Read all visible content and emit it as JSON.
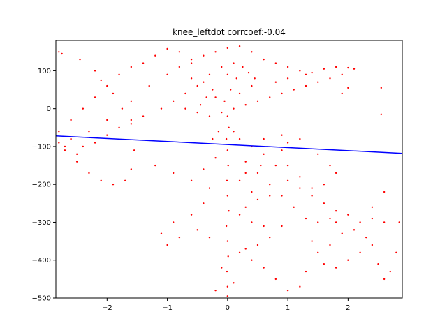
{
  "chart_data": {
    "type": "scatter",
    "title": "knee_leftdot corrcoef:-0.04",
    "xlabel": "",
    "ylabel": "",
    "xlim": [
      -2.85,
      2.9
    ],
    "ylim": [
      -500,
      180
    ],
    "xticks": [
      -2,
      -1,
      0,
      1,
      2
    ],
    "yticks": [
      100,
      0,
      -100,
      -200,
      -300,
      -400,
      -500
    ],
    "grid": false,
    "series": [
      {
        "type": "scatter",
        "color": "#ff0000",
        "points": [
          [
            -2.8,
            150
          ],
          [
            -2.75,
            145
          ],
          [
            -2.45,
            130
          ],
          [
            -2.2,
            100
          ],
          [
            -2.1,
            75
          ],
          [
            -1.9,
            40
          ],
          [
            -1.75,
            0
          ],
          [
            -1.6,
            -40
          ],
          [
            -1.55,
            -110
          ],
          [
            -1.6,
            -160
          ],
          [
            -1.7,
            -190
          ],
          [
            -1.9,
            -200
          ],
          [
            -2.1,
            -190
          ],
          [
            -2.3,
            -170
          ],
          [
            -2.5,
            -140
          ],
          [
            -2.7,
            -110
          ],
          [
            -2.8,
            -90
          ],
          [
            -2.6,
            -80
          ],
          [
            -2.3,
            -60
          ],
          [
            -2.0,
            -30
          ],
          [
            -1.6,
            20
          ],
          [
            -1.3,
            60
          ],
          [
            -1.0,
            90
          ],
          [
            -0.8,
            110
          ],
          [
            -0.6,
            120
          ],
          [
            -1.2,
            140
          ],
          [
            -1.0,
            158
          ],
          [
            -0.8,
            150
          ],
          [
            -0.6,
            130
          ],
          [
            -0.4,
            140
          ],
          [
            -0.2,
            150
          ],
          [
            0.0,
            160
          ],
          [
            0.2,
            165
          ],
          [
            0.4,
            150
          ],
          [
            0.6,
            130
          ],
          [
            0.8,
            120
          ],
          [
            1.0,
            110
          ],
          [
            1.2,
            100
          ],
          [
            1.4,
            95
          ],
          [
            1.6,
            105
          ],
          [
            1.8,
            110
          ],
          [
            2.0,
            108
          ],
          [
            2.1,
            105
          ],
          [
            1.9,
            90
          ],
          [
            1.7,
            80
          ],
          [
            1.5,
            70
          ],
          [
            1.3,
            60
          ],
          [
            1.1,
            50
          ],
          [
            0.9,
            40
          ],
          [
            0.7,
            30
          ],
          [
            0.5,
            20
          ],
          [
            0.3,
            10
          ],
          [
            0.1,
            0
          ],
          [
            -0.1,
            -10
          ],
          [
            -0.3,
            -20
          ],
          [
            -0.5,
            -10
          ],
          [
            -0.7,
            0
          ],
          [
            -0.2,
            30
          ],
          [
            0.2,
            40
          ],
          [
            0.4,
            60
          ],
          [
            0.0,
            90
          ],
          [
            -0.1,
            110
          ],
          [
            0.1,
            120
          ],
          [
            0.15,
            80
          ],
          [
            0.05,
            50
          ],
          [
            -0.05,
            20
          ],
          [
            0.0,
            -20
          ],
          [
            0.02,
            -50
          ],
          [
            -0.02,
            -80
          ],
          [
            0.0,
            -110
          ],
          [
            0.01,
            -150
          ],
          [
            -0.01,
            -190
          ],
          [
            0.0,
            -230
          ],
          [
            0.02,
            -270
          ],
          [
            -0.02,
            -310
          ],
          [
            0.0,
            -350
          ],
          [
            0.01,
            -390
          ],
          [
            -0.01,
            -430
          ],
          [
            0.0,
            -470
          ],
          [
            0.0,
            -495
          ],
          [
            -0.2,
            -480
          ],
          [
            0.1,
            -460
          ],
          [
            -0.1,
            -420
          ],
          [
            0.2,
            -380
          ],
          [
            -0.3,
            -340
          ],
          [
            -0.5,
            -320
          ],
          [
            -0.8,
            -340
          ],
          [
            -1.0,
            -360
          ],
          [
            -1.1,
            -330
          ],
          [
            -0.9,
            -300
          ],
          [
            -0.6,
            -280
          ],
          [
            -0.4,
            -250
          ],
          [
            -0.3,
            -210
          ],
          [
            -0.6,
            -190
          ],
          [
            -0.9,
            -170
          ],
          [
            -1.2,
            -150
          ],
          [
            -0.4,
            -160
          ],
          [
            -0.2,
            -130
          ],
          [
            0.3,
            -140
          ],
          [
            0.5,
            -170
          ],
          [
            0.7,
            -200
          ],
          [
            0.9,
            -230
          ],
          [
            1.1,
            -260
          ],
          [
            1.3,
            -290
          ],
          [
            1.5,
            -300
          ],
          [
            1.7,
            -290
          ],
          [
            1.8,
            -270
          ],
          [
            1.6,
            -250
          ],
          [
            1.4,
            -230
          ],
          [
            1.2,
            -210
          ],
          [
            1.0,
            -190
          ],
          [
            0.8,
            -150
          ],
          [
            0.6,
            -120
          ],
          [
            0.4,
            -100
          ],
          [
            0.6,
            -80
          ],
          [
            0.9,
            -70
          ],
          [
            1.2,
            -80
          ],
          [
            1.5,
            -120
          ],
          [
            1.7,
            -150
          ],
          [
            1.8,
            -170
          ],
          [
            1.6,
            -200
          ],
          [
            1.4,
            -210
          ],
          [
            1.2,
            -180
          ],
          [
            1.0,
            -150
          ],
          [
            0.9,
            -110
          ],
          [
            1.0,
            -90
          ],
          [
            1.8,
            -300
          ],
          [
            2.1,
            -320
          ],
          [
            2.3,
            -340
          ],
          [
            2.2,
            -380
          ],
          [
            2.0,
            -400
          ],
          [
            1.8,
            -420
          ],
          [
            1.6,
            -410
          ],
          [
            1.5,
            -380
          ],
          [
            1.4,
            -350
          ],
          [
            2.4,
            -360
          ],
          [
            2.5,
            -410
          ],
          [
            2.6,
            -450
          ],
          [
            2.7,
            -430
          ],
          [
            2.8,
            -380
          ],
          [
            2.85,
            -300
          ],
          [
            2.9,
            -265
          ],
          [
            2.6,
            -300
          ],
          [
            2.4,
            -290
          ],
          [
            2.2,
            -300
          ],
          [
            2.0,
            -280
          ],
          [
            1.9,
            -330
          ],
          [
            1.7,
            -360
          ],
          [
            1.3,
            -430
          ],
          [
            1.2,
            -470
          ],
          [
            1.0,
            -480
          ],
          [
            0.8,
            -450
          ],
          [
            0.6,
            -420
          ],
          [
            0.4,
            -400
          ],
          [
            0.3,
            -370
          ],
          [
            0.5,
            -360
          ],
          [
            0.7,
            -340
          ],
          [
            0.9,
            -310
          ],
          [
            0.6,
            -310
          ],
          [
            0.4,
            -300
          ],
          [
            0.2,
            -280
          ],
          [
            0.3,
            -260
          ],
          [
            0.5,
            -240
          ],
          [
            0.7,
            -230
          ],
          [
            0.4,
            -220
          ],
          [
            0.2,
            -190
          ],
          [
            0.3,
            -170
          ],
          [
            0.55,
            -150
          ],
          [
            2.55,
            55
          ],
          [
            2.55,
            -15
          ],
          [
            2.6,
            -220
          ],
          [
            2.4,
            -260
          ],
          [
            1.9,
            40
          ],
          [
            2.0,
            55
          ],
          [
            -0.5,
            60
          ],
          [
            -0.7,
            40
          ],
          [
            -0.9,
            20
          ],
          [
            -1.1,
            0
          ],
          [
            -1.4,
            -20
          ],
          [
            -1.6,
            -30
          ],
          [
            -1.8,
            -50
          ],
          [
            -2.0,
            -70
          ],
          [
            -2.2,
            -90
          ],
          [
            -2.4,
            -100
          ],
          [
            -2.5,
            -120
          ],
          [
            -2.7,
            -100
          ],
          [
            -2.8,
            -60
          ],
          [
            -2.6,
            -30
          ],
          [
            -2.4,
            0
          ],
          [
            -2.2,
            30
          ],
          [
            -2.0,
            60
          ],
          [
            -1.8,
            90
          ],
          [
            -1.6,
            110
          ],
          [
            -1.4,
            120
          ],
          [
            -0.3,
            90
          ],
          [
            -0.4,
            70
          ],
          [
            -0.6,
            80
          ],
          [
            0.8,
            70
          ],
          [
            1.0,
            80
          ],
          [
            1.3,
            90
          ],
          [
            0.25,
            110
          ],
          [
            0.35,
            95
          ],
          [
            0.45,
            80
          ],
          [
            -0.25,
            50
          ],
          [
            -0.35,
            30
          ],
          [
            -0.45,
            10
          ],
          [
            0.1,
            -60
          ],
          [
            0.2,
            -80
          ],
          [
            -0.15,
            -60
          ],
          [
            -0.25,
            -80
          ]
        ]
      },
      {
        "type": "line",
        "color": "#0000ff",
        "points": [
          [
            -2.85,
            -72
          ],
          [
            2.9,
            -118
          ]
        ]
      }
    ]
  }
}
